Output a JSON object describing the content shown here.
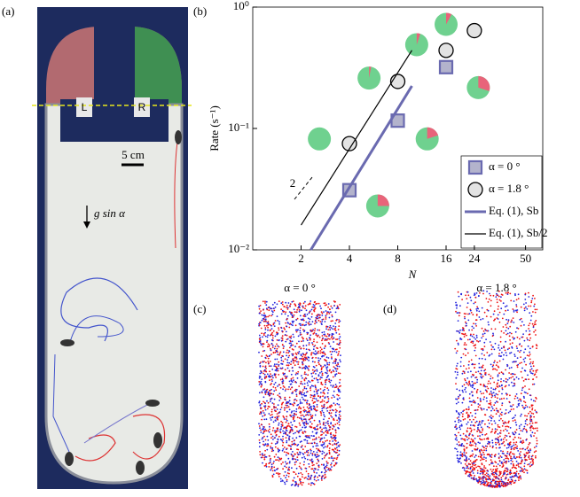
{
  "chart_data": {
    "type": "scatter",
    "xlabel": "N",
    "ylabel": "Rate (s⁻¹)",
    "log_x": true,
    "log_y": true,
    "grid": false,
    "legend": "lower right",
    "xlim": [
      1,
      64
    ],
    "ylim": [
      0.01,
      1
    ],
    "xticks": [
      2,
      4,
      8,
      16,
      24,
      50
    ],
    "yticks": [
      {
        "value": 0.01,
        "label": "10⁻²"
      },
      {
        "value": 0.1,
        "label": "10⁻¹"
      },
      {
        "value": 1,
        "label": "10⁰"
      }
    ],
    "slope_label": "2",
    "series": [
      {
        "name": "α = 0 °",
        "marker": "square",
        "color": "#6a6ab0",
        "x": [
          4,
          8,
          16
        ],
        "values": [
          0.031,
          0.116,
          0.32
        ]
      },
      {
        "name": "α = 1.8 °",
        "marker": "circle",
        "color": "#000000",
        "x": [
          4,
          8,
          16,
          24
        ],
        "values": [
          0.075,
          0.244,
          0.44,
          0.64
        ]
      },
      {
        "name": "Eq. (1), Sb",
        "marker": "line",
        "color": "#6a6ab0",
        "x": [
          2.3,
          9.8
        ],
        "values": [
          0.01,
          0.224
        ]
      },
      {
        "name": "Eq. (1), Sb/2",
        "marker": "line",
        "color": "#000000",
        "x": [
          2,
          9.8
        ],
        "values": [
          0.016,
          0.44
        ]
      }
    ],
    "pies": {
      "colors": [
        "#6fd18f",
        "#e8647a"
      ],
      "x": [
        2.6,
        5.3,
        10.5,
        16,
        25.4,
        12.2,
        6.0
      ],
      "values": [
        0.082,
        0.26,
        0.49,
        0.72,
        0.217,
        0.082,
        0.023
      ],
      "red_fraction": [
        0,
        0.03,
        0.05,
        0.08,
        0.3,
        0.2,
        0.25
      ]
    }
  },
  "panels": {
    "a": {
      "label": "(a)",
      "left": "L",
      "right": "R",
      "scale": "5 cm",
      "gravity": "g sin α"
    },
    "b": {
      "label": "(b)"
    },
    "c": {
      "label": "(c)",
      "title": "α = 0 °"
    },
    "d": {
      "label": "(d)",
      "title": "α = 1.8 °"
    }
  }
}
